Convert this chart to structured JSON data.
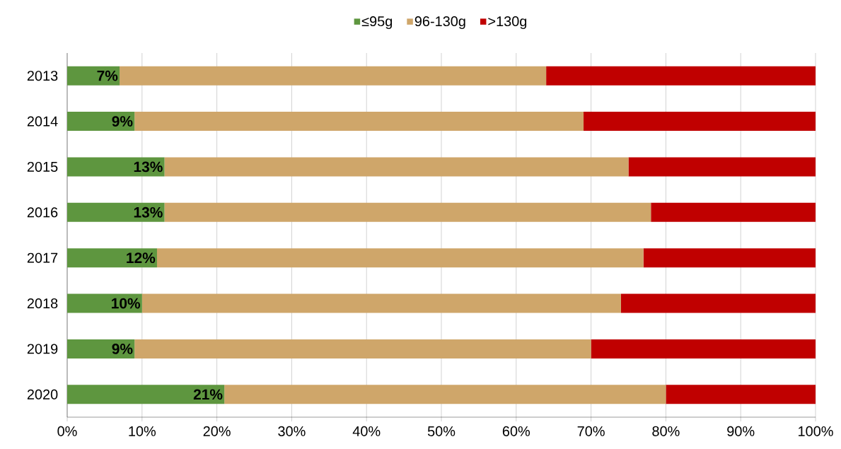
{
  "chart_data": {
    "type": "bar",
    "orientation": "horizontal",
    "stacked": true,
    "categories": [
      "2013",
      "2014",
      "2015",
      "2016",
      "2017",
      "2018",
      "2019",
      "2020"
    ],
    "series": [
      {
        "name": "≤95g",
        "color": "#5e963f",
        "values": [
          7,
          9,
          13,
          13,
          12,
          10,
          9,
          21
        ],
        "value_labels": [
          "7%",
          "9%",
          "13%",
          "13%",
          "12%",
          "10%",
          "9%",
          "21%"
        ]
      },
      {
        "name": "96-130g",
        "color": "#cfa66a",
        "values": [
          57,
          60,
          62,
          65,
          65,
          64,
          61,
          59
        ]
      },
      {
        "name": ">130g",
        "color": "#c00000",
        "values": [
          36,
          31,
          25,
          22,
          23,
          26,
          30,
          20
        ]
      }
    ],
    "xlim": [
      0,
      100
    ],
    "xticks": [
      {
        "value": 0,
        "label": "0%"
      },
      {
        "value": 10,
        "label": "10%"
      },
      {
        "value": 20,
        "label": "20%"
      },
      {
        "value": 30,
        "label": "30%"
      },
      {
        "value": 40,
        "label": "40%"
      },
      {
        "value": 50,
        "label": "50%"
      },
      {
        "value": 60,
        "label": "60%"
      },
      {
        "value": 70,
        "label": "70%"
      },
      {
        "value": 80,
        "label": "80%"
      },
      {
        "value": 90,
        "label": "90%"
      },
      {
        "value": 100,
        "label": "100%"
      }
    ],
    "grid": "x",
    "legend": "top"
  }
}
